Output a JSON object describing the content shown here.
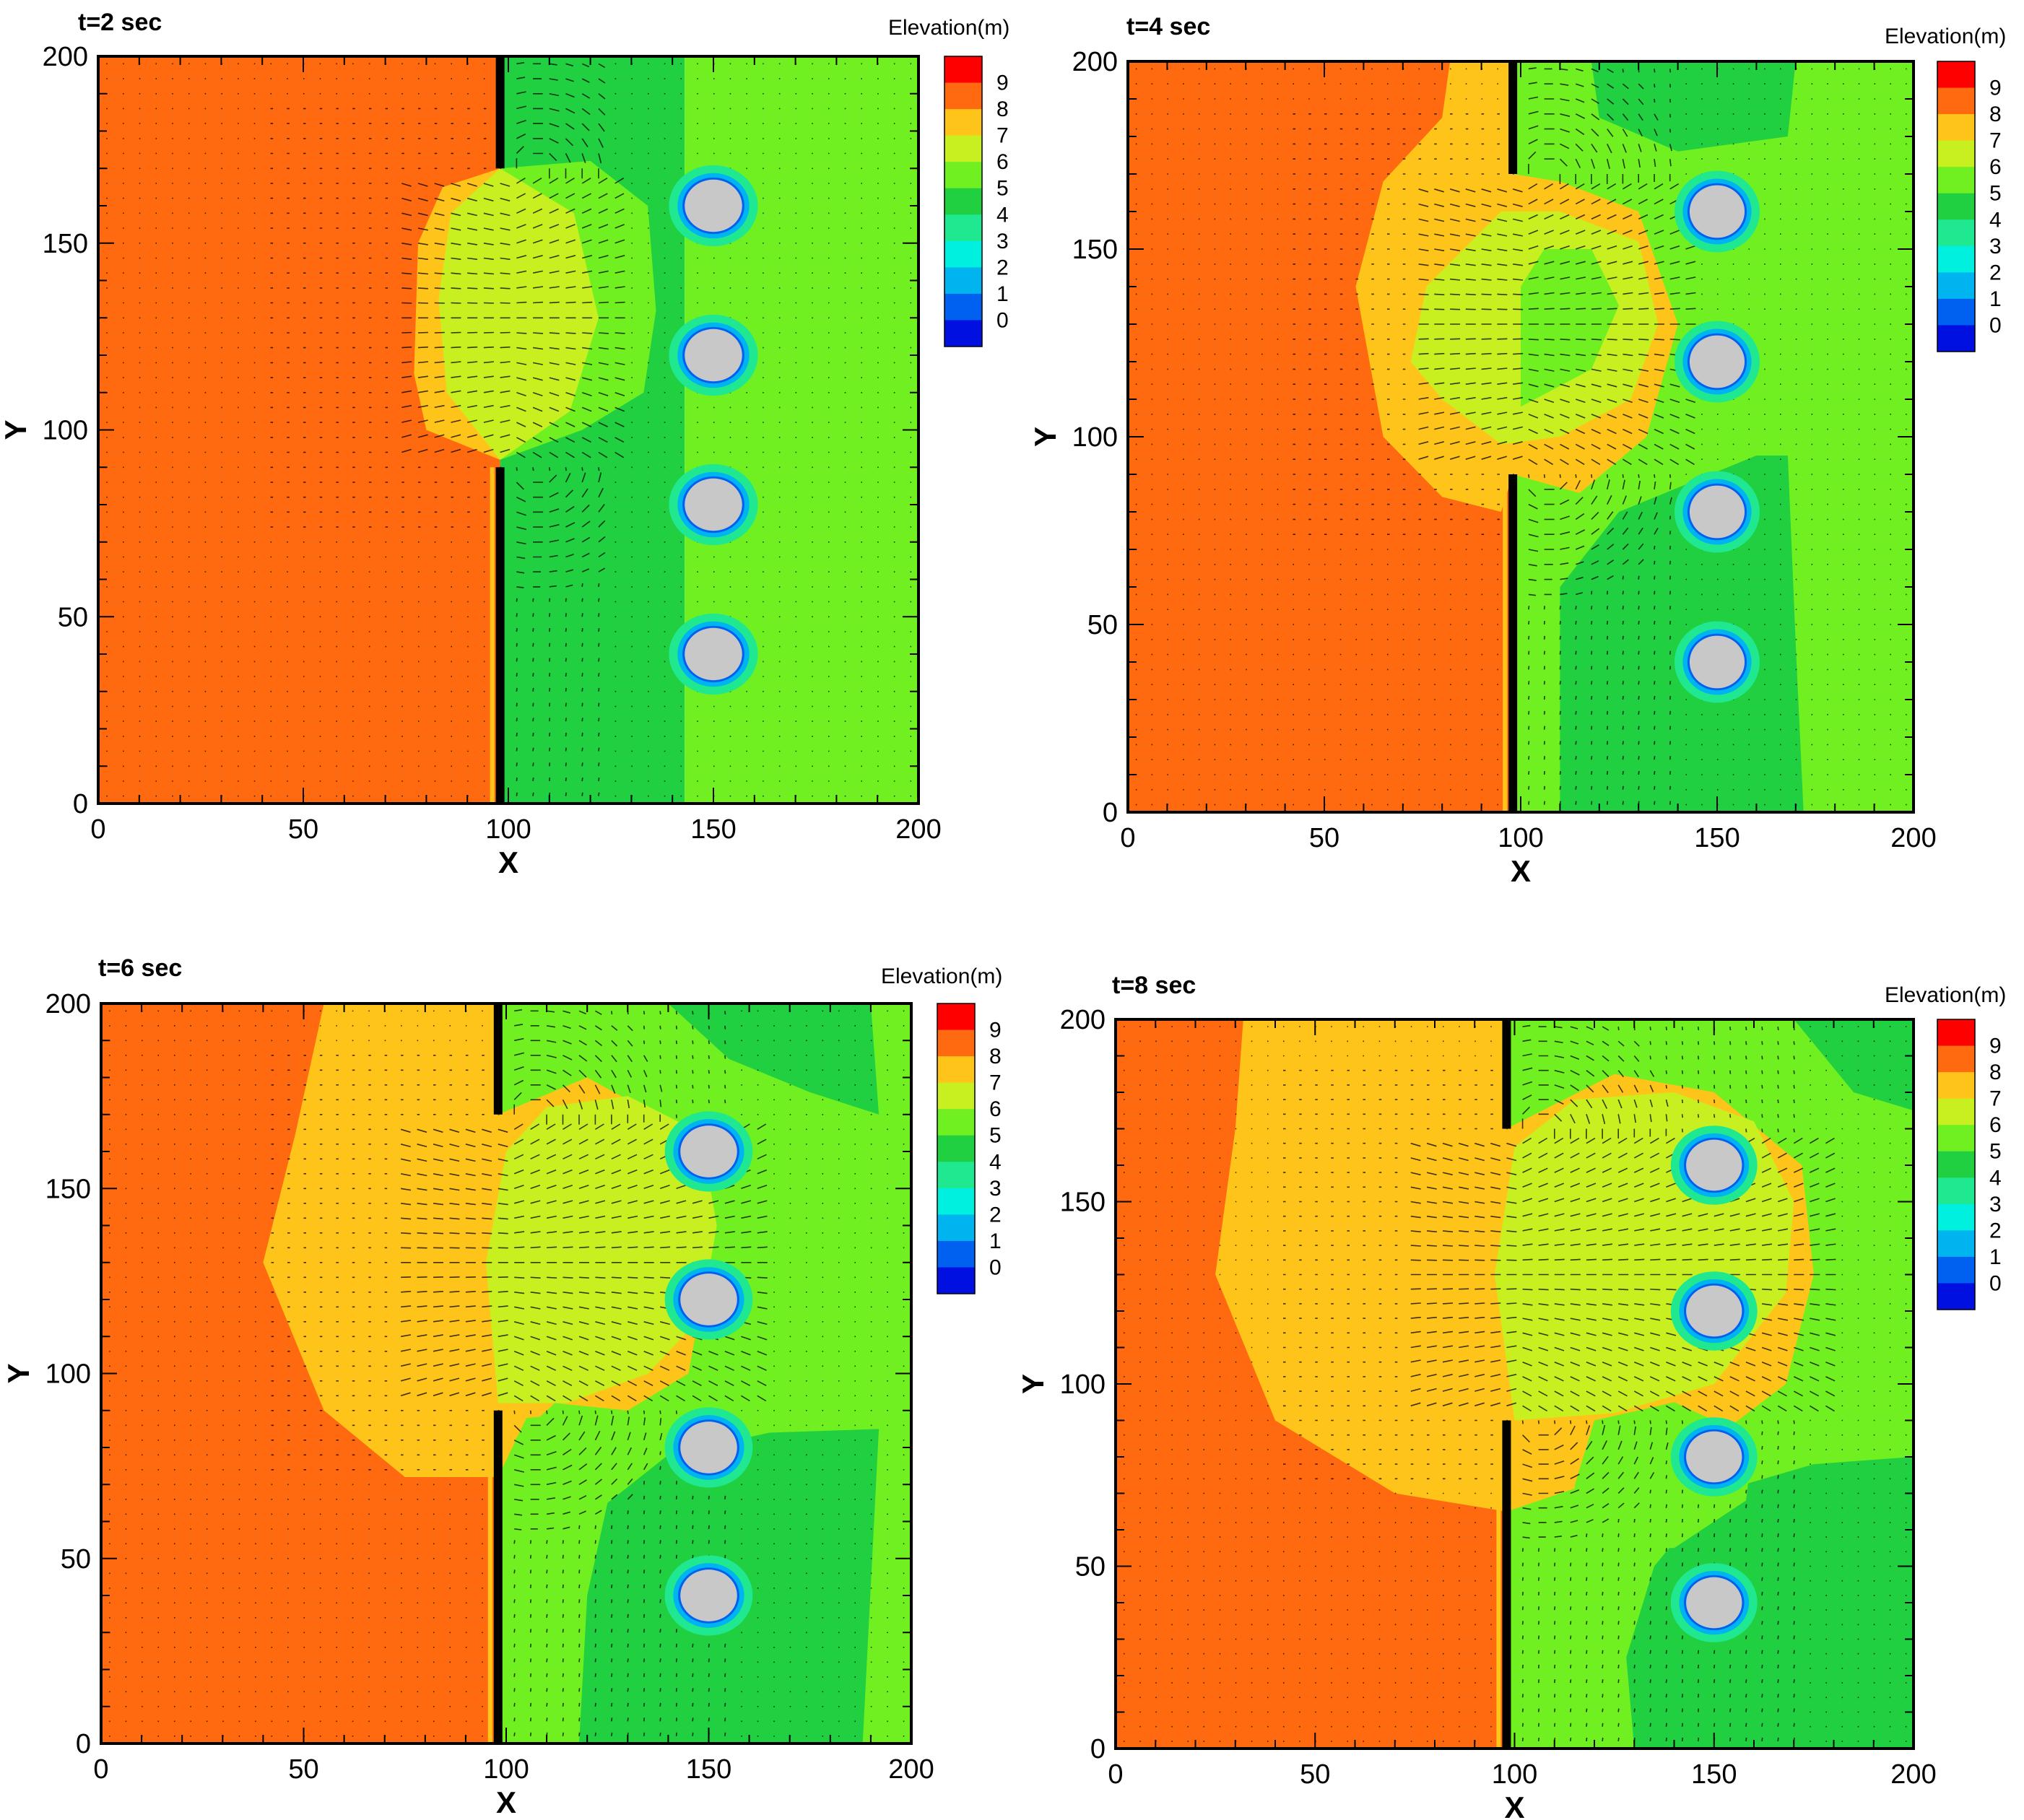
{
  "figure": {
    "colors": {
      "frame": "#000000",
      "background": "#ffffff",
      "pier": "#c8c8c8",
      "wall": "#000000"
    },
    "legend": {
      "title": "Elevation(m)",
      "levels": [
        "9",
        "8",
        "7",
        "6",
        "5",
        "4",
        "3",
        "2",
        "1",
        "0"
      ],
      "colors": [
        "#ff0000",
        "#ff6a10",
        "#ffc41a",
        "#c8f020",
        "#70f020",
        "#20d040",
        "#20e890",
        "#00f0e0",
        "#00b4f0",
        "#0060f0",
        "#0010e0"
      ]
    }
  },
  "chart_data": [
    {
      "type": "heatmap",
      "title": "t=2 sec",
      "xlabel": "X",
      "ylabel": "Y",
      "xlim": [
        0,
        200
      ],
      "ylim": [
        0,
        200
      ],
      "xticks": [
        "0",
        "50",
        "100",
        "150",
        "200"
      ],
      "yticks": [
        "0",
        "50",
        "100",
        "150",
        "200"
      ],
      "wall": {
        "x": 98,
        "gap_y": [
          90,
          170
        ]
      },
      "piers": [
        {
          "x": 150,
          "y": 40
        },
        {
          "x": 150,
          "y": 80
        },
        {
          "x": 150,
          "y": 120
        },
        {
          "x": 150,
          "y": 160
        }
      ],
      "regions": [
        {
          "level": 9,
          "points": [
            [
              0,
              0
            ],
            [
              98,
              0
            ],
            [
              98,
              200
            ],
            [
              0,
              200
            ]
          ]
        },
        {
          "level": 5,
          "points": [
            [
              98,
              0
            ],
            [
              143,
              0
            ],
            [
              143,
              200
            ],
            [
              98,
              200
            ]
          ]
        },
        {
          "level": 6,
          "points": [
            [
              143,
              0
            ],
            [
              200,
              0
            ],
            [
              200,
              200
            ],
            [
              143,
              200
            ]
          ]
        },
        {
          "level": 8,
          "points": [
            [
              80,
              100
            ],
            [
              98,
              92
            ],
            [
              98,
              170
            ],
            [
              84,
              165
            ],
            [
              78,
              150
            ],
            [
              77,
              115
            ]
          ]
        },
        {
          "level": 6,
          "points": [
            [
              98,
              92
            ],
            [
              118,
              100
            ],
            [
              133,
              110
            ],
            [
              136,
              132
            ],
            [
              134,
              160
            ],
            [
              120,
              172
            ],
            [
              98,
              170
            ]
          ]
        },
        {
          "level": 7,
          "points": [
            [
              85,
              110
            ],
            [
              98,
              92
            ],
            [
              115,
              105
            ],
            [
              122,
              130
            ],
            [
              116,
              158
            ],
            [
              98,
              170
            ],
            [
              86,
              158
            ],
            [
              83,
              135
            ]
          ]
        }
      ]
    },
    {
      "type": "heatmap",
      "title": "t=4 sec",
      "xlabel": "X",
      "ylabel": "Y",
      "xlim": [
        0,
        200
      ],
      "ylim": [
        0,
        200
      ],
      "xticks": [
        "0",
        "50",
        "100",
        "150",
        "200"
      ],
      "yticks": [
        "0",
        "50",
        "100",
        "150",
        "200"
      ],
      "wall": {
        "x": 98,
        "gap_y": [
          90,
          170
        ]
      },
      "piers": [
        {
          "x": 150,
          "y": 40
        },
        {
          "x": 150,
          "y": 80
        },
        {
          "x": 150,
          "y": 120
        },
        {
          "x": 150,
          "y": 160
        }
      ],
      "regions": [
        {
          "level": 9,
          "points": [
            [
              0,
              0
            ],
            [
              98,
              0
            ],
            [
              98,
              200
            ],
            [
              0,
              200
            ]
          ]
        },
        {
          "level": 6,
          "points": [
            [
              98,
              0
            ],
            [
              200,
              0
            ],
            [
              200,
              200
            ],
            [
              98,
              200
            ]
          ]
        },
        {
          "level": 5,
          "points": [
            [
              110,
              0
            ],
            [
              172,
              0
            ],
            [
              170,
              45
            ],
            [
              168,
              95
            ],
            [
              160,
              95
            ],
            [
              125,
              80
            ],
            [
              110,
              60
            ]
          ]
        },
        {
          "level": 5,
          "points": [
            [
              118,
              200
            ],
            [
              170,
              200
            ],
            [
              168,
              180
            ],
            [
              140,
              176
            ],
            [
              120,
              185
            ]
          ]
        },
        {
          "level": 8,
          "points": [
            [
              95,
              80
            ],
            [
              80,
              84
            ],
            [
              65,
              100
            ],
            [
              58,
              140
            ],
            [
              65,
              168
            ],
            [
              80,
              185
            ],
            [
              82,
              200
            ],
            [
              98,
              200
            ],
            [
              98,
              170
            ],
            [
              110,
              168
            ],
            [
              130,
              160
            ],
            [
              140,
              130
            ],
            [
              132,
              100
            ],
            [
              115,
              85
            ],
            [
              98,
              90
            ]
          ]
        },
        {
          "level": 7,
          "points": [
            [
              72,
              120
            ],
            [
              76,
              140
            ],
            [
              95,
              160
            ],
            [
              110,
              160
            ],
            [
              130,
              152
            ],
            [
              135,
              130
            ],
            [
              128,
              110
            ],
            [
              110,
              100
            ],
            [
              95,
              98
            ],
            [
              80,
              110
            ]
          ]
        },
        {
          "level": 6,
          "points": [
            [
              100,
              108
            ],
            [
              118,
              118
            ],
            [
              125,
              135
            ],
            [
              118,
              150
            ],
            [
              106,
              150
            ],
            [
              100,
              140
            ]
          ]
        }
      ]
    },
    {
      "type": "heatmap",
      "title": "t=6 sec",
      "xlabel": "X",
      "ylabel": "Y",
      "xlim": [
        0,
        200
      ],
      "ylim": [
        0,
        200
      ],
      "xticks": [
        "0",
        "50",
        "100",
        "150",
        "200"
      ],
      "yticks": [
        "0",
        "50",
        "100",
        "150",
        "200"
      ],
      "wall": {
        "x": 98,
        "gap_y": [
          90,
          170
        ]
      },
      "piers": [
        {
          "x": 150,
          "y": 40
        },
        {
          "x": 150,
          "y": 80
        },
        {
          "x": 150,
          "y": 120
        },
        {
          "x": 150,
          "y": 160
        }
      ],
      "regions": [
        {
          "level": 9,
          "points": [
            [
              0,
              0
            ],
            [
              98,
              0
            ],
            [
              98,
              200
            ],
            [
              0,
              200
            ]
          ]
        },
        {
          "level": 6,
          "points": [
            [
              98,
              0
            ],
            [
              200,
              0
            ],
            [
              200,
              200
            ],
            [
              98,
              200
            ]
          ]
        },
        {
          "level": 5,
          "points": [
            [
              118,
              0
            ],
            [
              188,
              0
            ],
            [
              192,
              85
            ],
            [
              165,
              84
            ],
            [
              140,
              78
            ],
            [
              125,
              65
            ],
            [
              120,
              40
            ]
          ]
        },
        {
          "level": 5,
          "points": [
            [
              140,
              200
            ],
            [
              190,
              200
            ],
            [
              192,
              170
            ],
            [
              175,
              176
            ],
            [
              155,
              185
            ]
          ]
        },
        {
          "level": 8,
          "points": [
            [
              98,
              72
            ],
            [
              75,
              72
            ],
            [
              55,
              90
            ],
            [
              40,
              130
            ],
            [
              48,
              165
            ],
            [
              55,
              200
            ],
            [
              98,
              200
            ],
            [
              98,
              170
            ],
            [
              120,
              180
            ],
            [
              145,
              165
            ],
            [
              150,
              130
            ],
            [
              145,
              100
            ],
            [
              130,
              90
            ],
            [
              105,
              88
            ]
          ]
        },
        {
          "level": 7,
          "points": [
            [
              98,
              92
            ],
            [
              115,
              92
            ],
            [
              135,
              100
            ],
            [
              148,
              115
            ],
            [
              152,
              140
            ],
            [
              148,
              165
            ],
            [
              130,
              175
            ],
            [
              110,
              172
            ],
            [
              100,
              160
            ],
            [
              95,
              130
            ]
          ]
        },
        {
          "level": 6,
          "points": [
            [
              105,
              65
            ],
            [
              125,
              68
            ],
            [
              135,
              78
            ],
            [
              130,
              90
            ],
            [
              112,
              92
            ],
            [
              102,
              82
            ]
          ]
        }
      ]
    },
    {
      "type": "heatmap",
      "title": "t=8 sec",
      "xlabel": "X",
      "ylabel": "Y",
      "xlim": [
        0,
        200
      ],
      "ylim": [
        0,
        200
      ],
      "xticks": [
        "0",
        "50",
        "100",
        "150",
        "200"
      ],
      "yticks": [
        "0",
        "50",
        "100",
        "150",
        "200"
      ],
      "wall": {
        "x": 98,
        "gap_y": [
          90,
          170
        ]
      },
      "piers": [
        {
          "x": 150,
          "y": 40
        },
        {
          "x": 150,
          "y": 80
        },
        {
          "x": 150,
          "y": 120
        },
        {
          "x": 150,
          "y": 160
        }
      ],
      "regions": [
        {
          "level": 9,
          "points": [
            [
              0,
              0
            ],
            [
              98,
              0
            ],
            [
              98,
              200
            ],
            [
              0,
              200
            ]
          ]
        },
        {
          "level": 6,
          "points": [
            [
              98,
              0
            ],
            [
              200,
              0
            ],
            [
              200,
              200
            ],
            [
              98,
              200
            ]
          ]
        },
        {
          "level": 5,
          "points": [
            [
              130,
              0
            ],
            [
              200,
              0
            ],
            [
              200,
              80
            ],
            [
              175,
              78
            ],
            [
              150,
              70
            ],
            [
              135,
              50
            ],
            [
              128,
              25
            ]
          ]
        },
        {
          "level": 5,
          "points": [
            [
              170,
              200
            ],
            [
              200,
              200
            ],
            [
              200,
              175
            ],
            [
              185,
              180
            ]
          ]
        },
        {
          "level": 8,
          "points": [
            [
              98,
              65
            ],
            [
              70,
              70
            ],
            [
              40,
              90
            ],
            [
              25,
              130
            ],
            [
              30,
              170
            ],
            [
              32,
              200
            ],
            [
              98,
              200
            ],
            [
              98,
              170
            ],
            [
              125,
              185
            ],
            [
              150,
              180
            ],
            [
              172,
              160
            ],
            [
              175,
              130
            ],
            [
              168,
              100
            ],
            [
              150,
              85
            ],
            [
              125,
              75
            ]
          ]
        },
        {
          "level": 7,
          "points": [
            [
              100,
              90
            ],
            [
              125,
              92
            ],
            [
              150,
              100
            ],
            [
              168,
              125
            ],
            [
              170,
              150
            ],
            [
              160,
              172
            ],
            [
              140,
              180
            ],
            [
              115,
              178
            ],
            [
              100,
              165
            ],
            [
              95,
              130
            ]
          ]
        },
        {
          "level": 6,
          "points": [
            [
              118,
              55
            ],
            [
              140,
              55
            ],
            [
              158,
              68
            ],
            [
              160,
              85
            ],
            [
              140,
              95
            ],
            [
              120,
              90
            ],
            [
              115,
              72
            ]
          ]
        }
      ]
    }
  ]
}
